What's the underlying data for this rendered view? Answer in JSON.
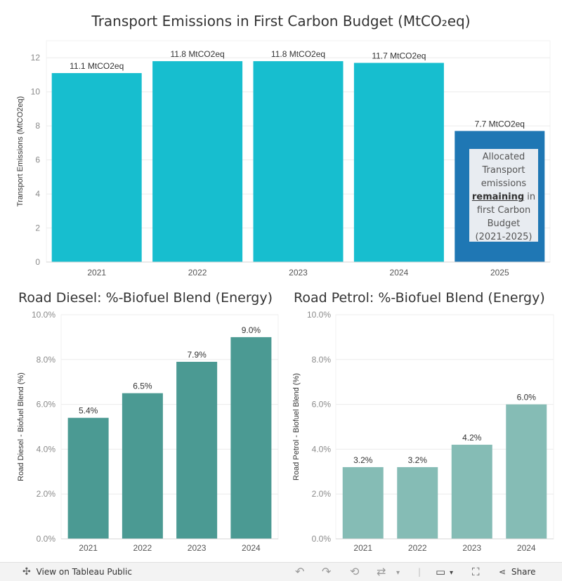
{
  "colors": {
    "cyan": "#17becf",
    "blue": "#1f77b4",
    "teal": "#4b9a93",
    "lightteal": "#85bcb5",
    "grid": "#ececec",
    "axis": "#d4d4d4"
  },
  "annotation": {
    "line1": "Allocated",
    "line2": "Transport",
    "line3": "emissions",
    "line4_bold": "remaining",
    "line4_rest": " in",
    "line5": "first Carbon",
    "line6": "Budget",
    "line7": "(2021-2025)"
  },
  "chart_data": [
    {
      "type": "bar",
      "title": "Transport Emissions in First Carbon Budget (MtCO₂eq)",
      "xlabel": "",
      "ylabel": "Transport Emissions (MtCO2eq)",
      "categories": [
        "2021",
        "2022",
        "2023",
        "2024",
        "2025"
      ],
      "values": [
        11.1,
        11.8,
        11.8,
        11.7,
        7.7
      ],
      "labels": [
        "11.1 MtCO2eq",
        "11.8 MtCO2eq",
        "11.8 MtCO2eq",
        "11.7 MtCO2eq",
        "7.7 MtCO2eq"
      ],
      "ylim": [
        0,
        13
      ],
      "yticks": [
        0,
        2,
        4,
        6,
        8,
        10,
        12
      ],
      "ytick_labels": [
        "0",
        "2",
        "4",
        "6",
        "8",
        "10",
        "12"
      ],
      "highlight_index": 4
    },
    {
      "type": "bar",
      "title": "Road Diesel: %-Biofuel Blend (Energy)",
      "xlabel": "",
      "ylabel": "Road Diesel - Biofuel Blend (%)",
      "categories": [
        "2021",
        "2022",
        "2023",
        "2024"
      ],
      "values": [
        5.4,
        6.5,
        7.9,
        9.0
      ],
      "labels": [
        "5.4%",
        "6.5%",
        "7.9%",
        "9.0%"
      ],
      "ylim": [
        0,
        10
      ],
      "yticks": [
        0,
        2,
        4,
        6,
        8,
        10
      ],
      "ytick_labels": [
        "0.0%",
        "2.0%",
        "4.0%",
        "6.0%",
        "8.0%",
        "10.0%"
      ]
    },
    {
      "type": "bar",
      "title": "Road Petrol: %-Biofuel Blend (Energy)",
      "xlabel": "",
      "ylabel": "Road Petrol - Biofuel Blend (%)",
      "categories": [
        "2021",
        "2022",
        "2023",
        "2024"
      ],
      "values": [
        3.2,
        3.2,
        4.2,
        6.0
      ],
      "labels": [
        "3.2%",
        "3.2%",
        "4.2%",
        "6.0%"
      ],
      "ylim": [
        0,
        10
      ],
      "yticks": [
        0,
        2,
        4,
        6,
        8,
        10
      ],
      "ytick_labels": [
        "0.0%",
        "2.0%",
        "4.0%",
        "6.0%",
        "8.0%",
        "10.0%"
      ]
    }
  ],
  "toolbar": {
    "view_label": "View on Tableau Public",
    "share_label": "Share"
  }
}
